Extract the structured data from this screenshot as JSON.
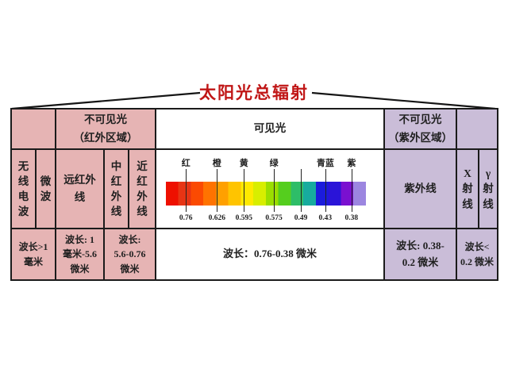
{
  "title": "太阳光总辐射",
  "colors": {
    "infrared_bg": "#e6b4b4",
    "ultraviolet_bg": "#cabdd8",
    "visible_bg": "#ffffff",
    "border": "#1b1b1b",
    "title_red": "#c01616"
  },
  "table": {
    "header": {
      "infrared_line1": "不可见光",
      "infrared_line2": "（红外区域）",
      "visible": "可见光",
      "ultraviolet_line1": "不可见光",
      "ultraviolet_line2": "（紫外区域）"
    },
    "bands": {
      "radio": "无线电波",
      "microwave": "微波",
      "far_infrared_line1": "远红外",
      "far_infrared_line2": "线",
      "mid_infrared": "中红外线",
      "near_infrared": "近红外线",
      "ultraviolet": "紫外线",
      "xray": "X射线",
      "gamma": "γ射线"
    },
    "wavelengths": {
      "radio_microwave": [
        "波长>1",
        "毫米"
      ],
      "far_infrared": [
        "波长: 1",
        "毫米-5.6",
        "微米"
      ],
      "mid_near_infrared": [
        "波长:",
        "5.6-0.76",
        "微米"
      ],
      "visible": "波长：0.76-0.38 微米",
      "ultraviolet": [
        "波长: 0.38-",
        "0.2 微米"
      ],
      "xray_gamma": [
        "波长<",
        "0.2 微米"
      ]
    }
  },
  "spectrum": {
    "unit": "微米",
    "ticks": [
      {
        "pos": 10.0,
        "label": "红",
        "value": "0.76"
      },
      {
        "pos": 25.5,
        "label": "橙",
        "value": "0.626"
      },
      {
        "pos": 39.0,
        "label": "黄",
        "value": "0.595"
      },
      {
        "pos": 54.0,
        "label": "绿",
        "value": "0.575"
      },
      {
        "pos": 67.5,
        "label": "",
        "value": "0.49"
      },
      {
        "pos": 79.7,
        "label": "青蓝",
        "value": "0.43"
      },
      {
        "pos": 92.8,
        "label": "紫",
        "value": "0.38"
      }
    ],
    "gradient_colors": [
      "#ee1000",
      "#e73414",
      "#fb4a02",
      "#ff7300",
      "#ffa000",
      "#ffc400",
      "#ffe900",
      "#d8ee00",
      "#9ade00",
      "#55ce1e",
      "#2ebd68",
      "#17ab9e",
      "#1b1bdc",
      "#2a14d8",
      "#7a10d0",
      "#9c86e0"
    ]
  }
}
